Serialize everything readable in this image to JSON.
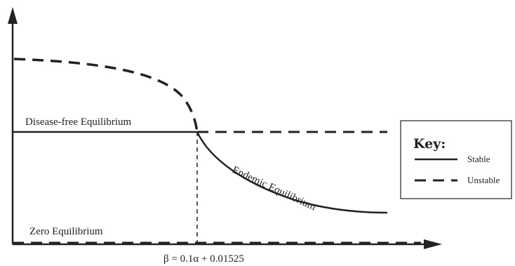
{
  "diagram": {
    "labels": {
      "disease_free": "Disease-free Equilibrium",
      "zero": "Zero Equilibrium",
      "endemic": "Endemic Equilibrium",
      "threshold": "β = 0.1α + 0.01525"
    },
    "key": {
      "title": "Key:",
      "stable": "Stable",
      "unstable": "Unstable"
    },
    "colors": {
      "line": "#222222",
      "background": "#ffffff"
    }
  }
}
